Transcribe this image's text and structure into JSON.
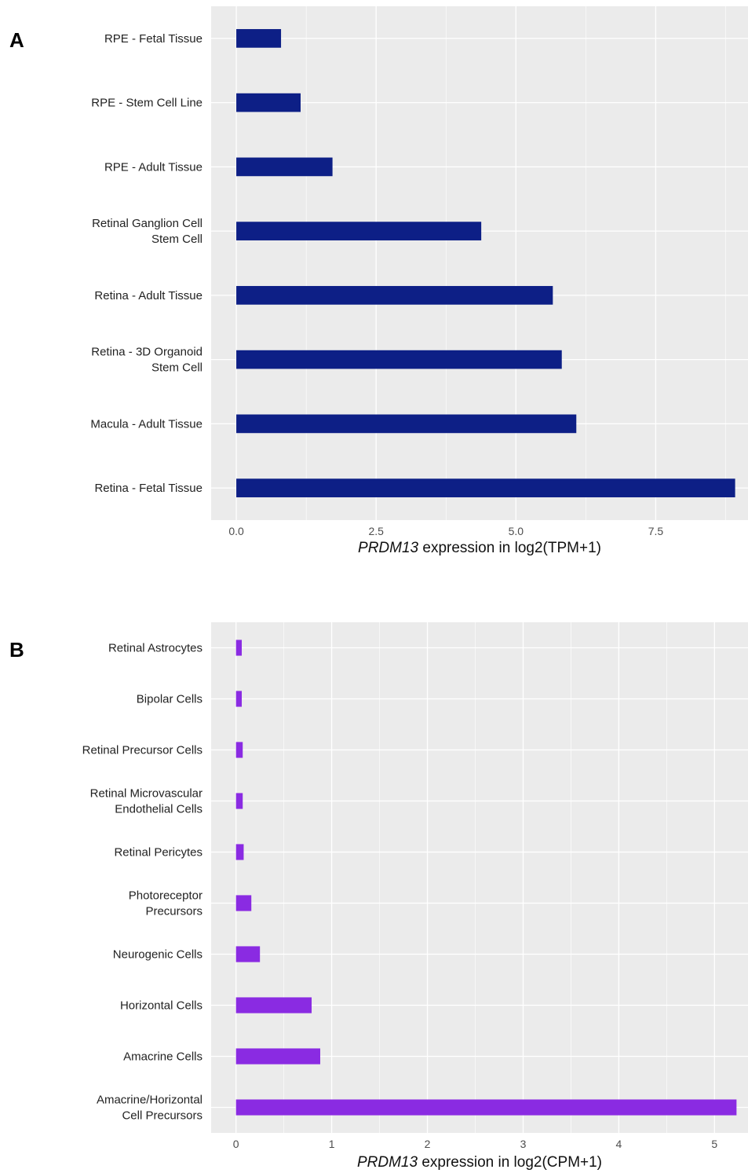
{
  "chart_data": [
    {
      "type": "bar",
      "orientation": "horizontal",
      "panel_label": "A",
      "categories": [
        "RPE - Fetal Tissue",
        "RPE - Stem Cell Line",
        "RPE - Adult Tissue",
        "Retinal Ganglion Cell\nStem Cell",
        "Retina - Adult Tissue",
        "Retina - 3D Organoid\nStem Cell",
        "Macula - Adult Tissue",
        "Retina - Fetal Tissue"
      ],
      "values": [
        0.8,
        1.15,
        1.72,
        4.38,
        5.66,
        5.82,
        6.08,
        8.92
      ],
      "xlabel_italic": "PRDM13",
      "xlabel_rest": " expression in log2(TPM+1)",
      "xlim": [
        -0.45,
        9.15
      ],
      "xticks": [
        0.0,
        2.5,
        5.0,
        7.5
      ],
      "xtick_labels": [
        "0.0",
        "2.5",
        "5.0",
        "7.5"
      ],
      "grid": true,
      "bar_color": "#0d1f86",
      "panel_background": "#ebebeb",
      "grid_color": "#ffffff"
    },
    {
      "type": "bar",
      "orientation": "horizontal",
      "panel_label": "B",
      "categories": [
        "Retinal Astrocytes",
        "Bipolar Cells",
        "Retinal Precursor Cells",
        "Retinal Microvascular\nEndothelial Cells",
        "Retinal Pericytes",
        "Photoreceptor\nPrecursors",
        "Neurogenic Cells",
        "Horizontal Cells",
        "Amacrine Cells",
        "Amacrine/Horizontal\nCell Precursors"
      ],
      "values": [
        0.06,
        0.06,
        0.07,
        0.07,
        0.08,
        0.16,
        0.25,
        0.79,
        0.88,
        5.23
      ],
      "xlabel_italic": "PRDM13",
      "xlabel_rest": " expression in log2(CPM+1)",
      "xlim": [
        -0.26,
        5.35
      ],
      "xticks": [
        0,
        1,
        2,
        3,
        4,
        5
      ],
      "xtick_labels": [
        "0",
        "1",
        "2",
        "3",
        "4",
        "5"
      ],
      "grid": true,
      "bar_color": "#8a2be2",
      "panel_background": "#ebebeb",
      "grid_color": "#ffffff"
    }
  ]
}
